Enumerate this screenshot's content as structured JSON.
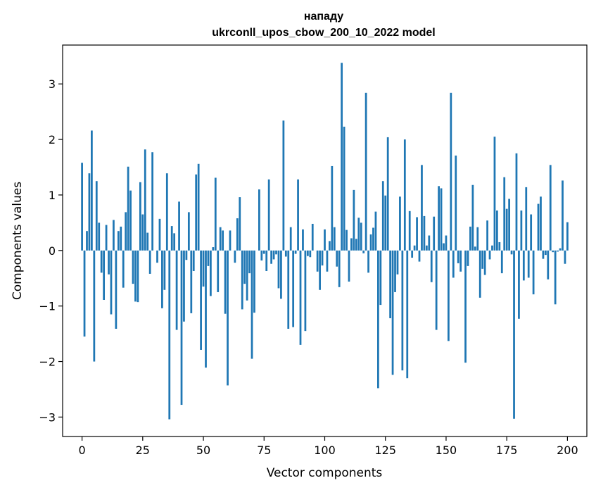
{
  "chart_data": {
    "type": "bar",
    "title": "нападу",
    "subtitle": "ukrconll_upos_cbow_200_10_2022 model",
    "xlabel": "Vector components",
    "ylabel": "Components values",
    "xlim": [
      -8,
      208
    ],
    "ylim": [
      -3.35,
      3.7
    ],
    "xticks": [
      0,
      25,
      50,
      75,
      100,
      125,
      150,
      175,
      200
    ],
    "xtick_labels": [
      "0",
      "25",
      "50",
      "75",
      "100",
      "125",
      "150",
      "175",
      "200"
    ],
    "yticks": [
      -3,
      -2,
      -1,
      0,
      1,
      2,
      3
    ],
    "ytick_labels": [
      "−3",
      "−2",
      "−1",
      "0",
      "1",
      "2",
      "3"
    ],
    "grid": false,
    "bar_color": "#1f77b4",
    "values": [
      1.58,
      -1.55,
      0.35,
      1.39,
      2.16,
      -2.0,
      1.25,
      0.5,
      -0.4,
      -0.89,
      0.46,
      -0.43,
      -1.15,
      0.55,
      -1.41,
      0.35,
      0.43,
      -0.67,
      0.69,
      1.51,
      1.08,
      -0.6,
      -0.92,
      -0.93,
      1.23,
      0.65,
      1.82,
      0.32,
      -0.42,
      1.77,
      0.0,
      -0.22,
      0.57,
      -1.04,
      -0.71,
      1.39,
      -3.04,
      0.44,
      0.31,
      -1.43,
      0.88,
      -2.78,
      -1.28,
      -0.17,
      0.69,
      -1.13,
      -0.37,
      1.37,
      1.56,
      -1.79,
      -0.65,
      -2.11,
      -0.28,
      -0.82,
      0.06,
      1.31,
      -0.75,
      0.42,
      0.36,
      -1.14,
      -2.43,
      0.36,
      0.0,
      -0.22,
      0.58,
      0.96,
      -1.06,
      -0.6,
      -0.9,
      -0.41,
      -1.95,
      -1.12,
      0.0,
      1.1,
      -0.18,
      -0.06,
      -0.37,
      1.28,
      -0.24,
      -0.16,
      -0.07,
      -0.68,
      -0.87,
      2.34,
      -0.11,
      -1.41,
      0.42,
      -1.38,
      -0.06,
      1.28,
      -1.7,
      0.38,
      -1.45,
      -0.1,
      -0.12,
      0.48,
      0.0,
      -0.38,
      -0.71,
      -0.27,
      0.38,
      -0.38,
      0.17,
      1.52,
      0.42,
      -0.29,
      -0.66,
      3.38,
      2.23,
      0.37,
      -0.56,
      0.22,
      1.09,
      0.21,
      0.59,
      0.5,
      -0.05,
      2.84,
      -0.4,
      0.29,
      0.41,
      0.7,
      -2.48,
      -0.98,
      1.25,
      0.99,
      2.04,
      -1.22,
      -2.24,
      -0.75,
      -0.43,
      0.97,
      -2.16,
      2.0,
      -2.3,
      0.71,
      -0.13,
      0.09,
      0.6,
      -0.2,
      1.54,
      0.62,
      0.09,
      0.27,
      -0.57,
      0.61,
      -1.43,
      1.16,
      1.12,
      0.13,
      0.27,
      -1.63,
      2.84,
      -0.49,
      1.71,
      -0.23,
      -0.38,
      0.0,
      -2.02,
      -0.28,
      0.43,
      1.18,
      0.07,
      0.42,
      -0.85,
      -0.33,
      -0.44,
      0.54,
      -0.16,
      0.09,
      2.05,
      0.72,
      0.15,
      -0.41,
      1.32,
      0.75,
      0.93,
      -0.07,
      -3.03,
      1.75,
      -1.23,
      0.72,
      -0.54,
      1.14,
      -0.49,
      0.65,
      -0.79,
      0.0,
      0.84,
      0.97,
      -0.15,
      -0.08,
      -0.52,
      1.54,
      -0.03,
      -0.97,
      -0.02,
      0.04,
      1.26,
      -0.24,
      0.51
    ]
  }
}
